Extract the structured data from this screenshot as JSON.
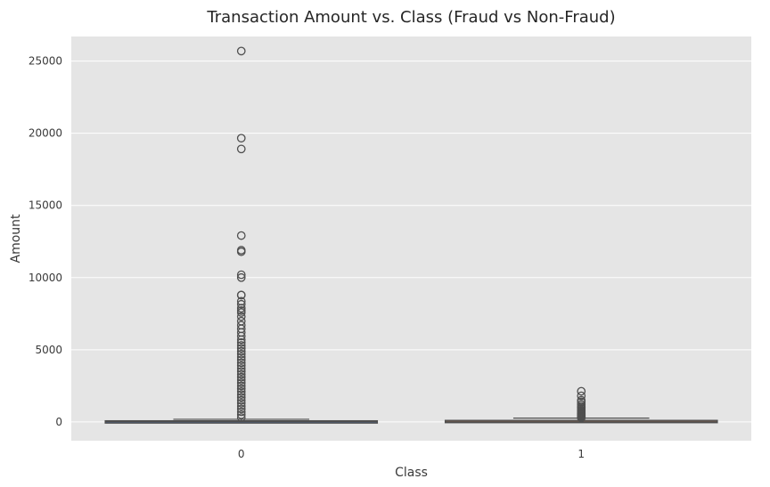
{
  "chart_data": {
    "type": "boxplot",
    "title": "Transaction Amount vs. Class (Fraud vs Non-Fraud)",
    "xlabel": "Class",
    "ylabel": "Amount",
    "categories": [
      "0",
      "1"
    ],
    "ylim": [
      -1300,
      26700
    ],
    "yticks": [
      0,
      5000,
      10000,
      15000,
      20000,
      25000
    ],
    "ytick_labels": [
      "0",
      "5000",
      "10000",
      "15000",
      "20000",
      "25000"
    ],
    "grid": true,
    "background": "#e5e5e5",
    "boxes": [
      {
        "category": "0",
        "color": "#4c72b0",
        "edge_color": "#4f4f4f",
        "whisker_low": 0,
        "q1": 5.6,
        "median": 22,
        "q3": 77,
        "whisker_high": 185,
        "outliers": [
          25691,
          19656,
          18910,
          12910,
          11898,
          11790,
          10199,
          10000,
          8790,
          8787,
          8360,
          8152,
          7880,
          7712,
          7580,
          7300,
          6980,
          6700,
          6450,
          6200,
          5950,
          5700,
          5500,
          5300,
          5100,
          4900,
          4700,
          4500,
          4300,
          4100,
          3900,
          3700,
          3500,
          3300,
          3100,
          2900,
          2700,
          2500,
          2300,
          2100,
          1900,
          1700,
          1500,
          1300,
          1100,
          900,
          700,
          500,
          300
        ]
      },
      {
        "category": "1",
        "color": "#dd8452",
        "edge_color": "#4f4f4f",
        "whisker_low": 0,
        "q1": 1,
        "median": 9,
        "q3": 105,
        "whisker_high": 265,
        "outliers": [
          2125,
          1810,
          1505,
          1390,
          1220,
          1100,
          1000,
          925,
          830,
          760,
          700,
          640,
          590,
          540,
          500,
          460,
          420,
          380,
          340,
          310,
          290
        ]
      }
    ]
  }
}
